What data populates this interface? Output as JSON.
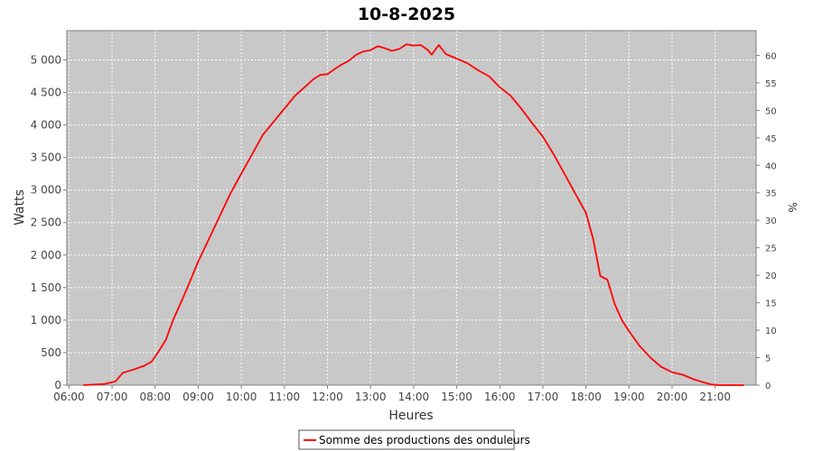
{
  "chart_data": {
    "type": "line",
    "title": "10-8-2025",
    "xlabel": "Heures",
    "ylabel": "Watts",
    "y2label": "%",
    "x_ticks": [
      "06:00",
      "07:00",
      "08:00",
      "09:00",
      "10:00",
      "11:00",
      "12:00",
      "13:00",
      "14:00",
      "15:00",
      "16:00",
      "17:00",
      "18:00",
      "19:00",
      "20:00",
      "21:00"
    ],
    "y_ticks": [
      0,
      500,
      1000,
      1500,
      2000,
      2500,
      3000,
      3500,
      4000,
      4500,
      5000
    ],
    "y_tick_labels": [
      "0",
      "500",
      "1 000",
      "1 500",
      "2 000",
      "2 500",
      "3 000",
      "3 500",
      "4 000",
      "4 500",
      "5 000"
    ],
    "y2_ticks": [
      0,
      5,
      10,
      15,
      20,
      25,
      30,
      35,
      40,
      45,
      50,
      55,
      60
    ],
    "xlim": [
      "05:57",
      "21:57"
    ],
    "ylim": [
      0,
      5450
    ],
    "y2lim": [
      0,
      64.5
    ],
    "grid": true,
    "legend_position": "bottom",
    "colors": {
      "series": "#ff0000",
      "plot_bg": "#c8c8c8",
      "grid": "#ffffff"
    },
    "series": [
      {
        "name": "Somme des productions des onduleurs",
        "x": [
          "06:20",
          "06:50",
          "07:05",
          "07:15",
          "07:30",
          "07:45",
          "07:55",
          "08:05",
          "08:15",
          "08:25",
          "08:35",
          "08:45",
          "09:00",
          "09:15",
          "09:30",
          "09:45",
          "10:00",
          "10:15",
          "10:30",
          "10:45",
          "11:00",
          "11:15",
          "11:30",
          "11:40",
          "11:50",
          "12:00",
          "12:10",
          "12:20",
          "12:30",
          "12:40",
          "12:50",
          "13:00",
          "13:10",
          "13:20",
          "13:30",
          "13:40",
          "13:50",
          "14:00",
          "14:10",
          "14:20",
          "14:25",
          "14:35",
          "14:45",
          "15:00",
          "15:15",
          "15:30",
          "15:45",
          "16:00",
          "16:15",
          "16:30",
          "16:45",
          "17:00",
          "17:15",
          "17:30",
          "17:45",
          "18:00",
          "18:10",
          "18:20",
          "18:30",
          "18:40",
          "18:50",
          "19:00",
          "19:15",
          "19:30",
          "19:45",
          "20:00",
          "20:15",
          "20:30",
          "20:45",
          "20:55",
          "21:05",
          "21:40"
        ],
        "values": [
          0,
          20,
          60,
          190,
          240,
          300,
          360,
          520,
          700,
          1000,
          1250,
          1500,
          1900,
          2250,
          2600,
          2950,
          3250,
          3550,
          3850,
          4050,
          4250,
          4450,
          4600,
          4700,
          4770,
          4780,
          4860,
          4930,
          4990,
          5080,
          5130,
          5150,
          5210,
          5180,
          5140,
          5170,
          5240,
          5220,
          5230,
          5150,
          5080,
          5230,
          5090,
          5020,
          4950,
          4840,
          4750,
          4580,
          4450,
          4250,
          4030,
          3820,
          3550,
          3250,
          2950,
          2650,
          2250,
          1680,
          1620,
          1250,
          1000,
          830,
          600,
          420,
          280,
          200,
          160,
          90,
          40,
          10,
          0,
          0
        ]
      }
    ]
  }
}
